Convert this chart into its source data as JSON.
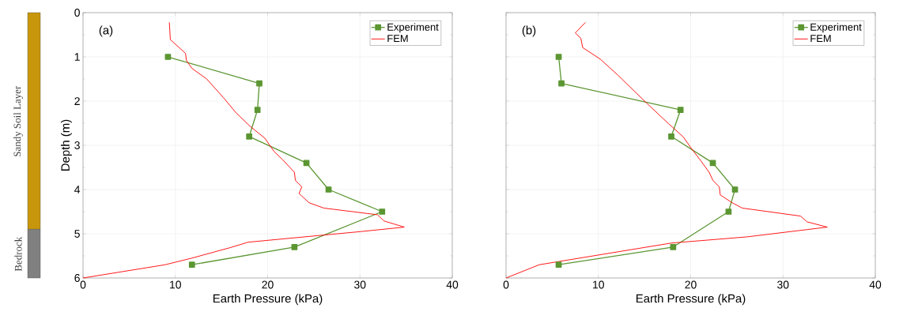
{
  "chart_data": [
    {
      "type": "line",
      "xlabel": "Earth Pressure (kPa)",
      "ylabel": "Depth (m)",
      "annotations": [
        "(a)",
        "Sandy Soil Layer",
        "Bedrock"
      ],
      "xlim": [
        0,
        40
      ],
      "ylim": [
        6,
        0
      ],
      "xticks": [
        0,
        10,
        20,
        30,
        40
      ],
      "yticks": [
        0,
        1,
        2,
        3,
        4,
        5,
        6
      ],
      "grid": true,
      "legend": "top right",
      "series": [
        {
          "name": "Experiment",
          "color": "#5b9632",
          "marker": "square",
          "x": [
            9.2,
            19.1,
            18.9,
            18.0,
            24.2,
            26.6,
            32.4,
            22.9,
            11.8
          ],
          "values": [
            1.0,
            1.6,
            2.2,
            2.8,
            3.4,
            4.0,
            4.5,
            5.3,
            5.7
          ]
        },
        {
          "name": "FEM",
          "color": "#ff0000",
          "marker": "none",
          "x": [
            9.35,
            9.46,
            11.1,
            11.2,
            11.8,
            13.4,
            15.2,
            16.6,
            18.1,
            19.7,
            20.7,
            21.6,
            22.9,
            23.0,
            23.7,
            23.4,
            24.5,
            26.1,
            31.9,
            32.6,
            34.8,
            30.1,
            17.9,
            16.0,
            11.8,
            8.9,
            0
          ],
          "values": [
            0.22,
            0.61,
            0.92,
            1.08,
            1.26,
            1.5,
            1.92,
            2.27,
            2.57,
            2.84,
            3.14,
            3.32,
            3.61,
            3.79,
            3.94,
            4.09,
            4.3,
            4.42,
            4.57,
            4.71,
            4.85,
            4.95,
            5.19,
            5.31,
            5.55,
            5.7,
            6.0
          ]
        }
      ]
    },
    {
      "type": "line",
      "xlabel": "Earth Pressure (kPa)",
      "annotations": [
        "(b)"
      ],
      "xlim": [
        0,
        40
      ],
      "ylim": [
        6,
        0
      ],
      "xticks": [
        0,
        10,
        20,
        30,
        40
      ],
      "yticks": [
        0,
        1,
        2,
        3,
        4,
        5,
        6
      ],
      "tick_labels": "x",
      "grid": true,
      "legend": "top right",
      "series": [
        {
          "name": "Experiment",
          "color": "#5b9632",
          "marker": "square",
          "x": [
            5.7,
            6.0,
            18.9,
            17.9,
            22.4,
            24.8,
            24.1,
            18.1,
            5.7
          ],
          "values": [
            1.0,
            1.6,
            2.2,
            2.8,
            3.4,
            4.0,
            4.5,
            5.3,
            5.7
          ]
        },
        {
          "name": "FEM",
          "color": "#ff0000",
          "marker": "none",
          "x": [
            8.6,
            7.5,
            8.1,
            8.3,
            10.2,
            12.1,
            15.2,
            17.6,
            19.2,
            20.0,
            21.1,
            22.0,
            22.4,
            23.1,
            23.2,
            24.5,
            25.6,
            31.9,
            32.6,
            34.8,
            26.1,
            17.9,
            3.6,
            0
          ],
          "values": [
            0.22,
            0.46,
            0.58,
            0.79,
            1.05,
            1.41,
            2.04,
            2.51,
            2.81,
            3.05,
            3.35,
            3.61,
            3.79,
            3.94,
            4.12,
            4.3,
            4.42,
            4.6,
            4.73,
            4.85,
            5.07,
            5.21,
            5.7,
            6.0
          ]
        }
      ]
    }
  ]
}
